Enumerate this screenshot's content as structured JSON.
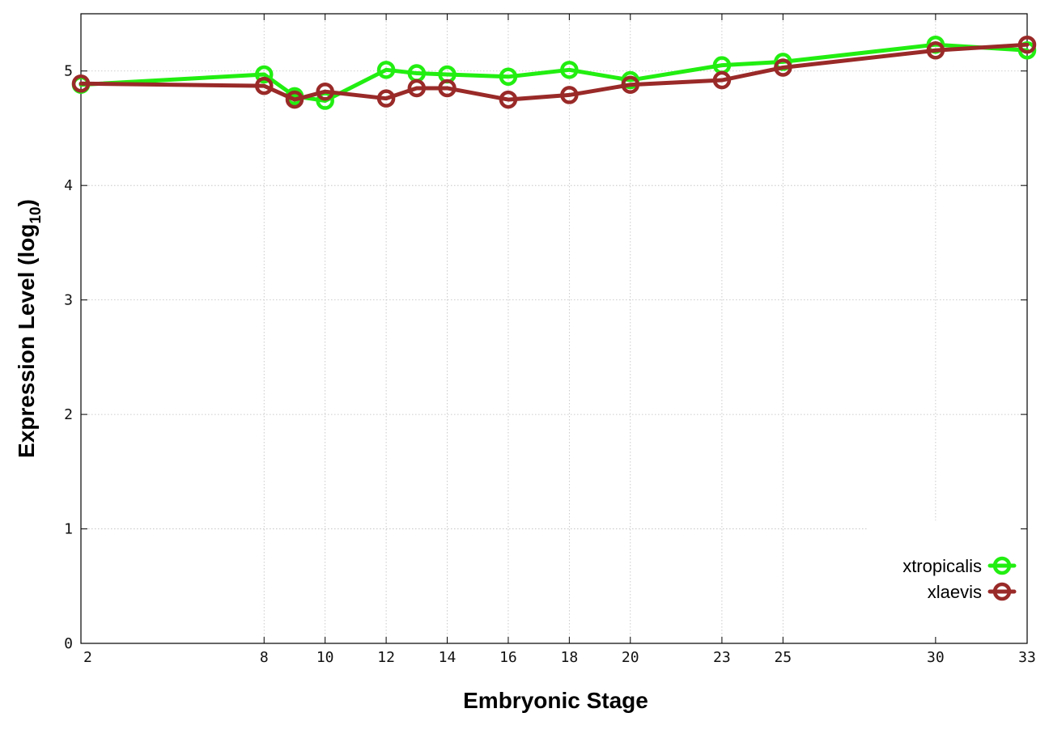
{
  "chart_data": {
    "type": "line",
    "title": "",
    "xlabel": "Embryonic Stage",
    "ylabel": {
      "prefix": "Expression Level (log",
      "subscript": "10",
      "suffix": ")"
    },
    "x": [
      2,
      8,
      9,
      10,
      12,
      13,
      14,
      16,
      18,
      20,
      23,
      25,
      30,
      33
    ],
    "x_ticks": [
      2,
      8,
      10,
      12,
      14,
      16,
      18,
      20,
      23,
      25,
      30,
      33
    ],
    "y_ticks": [
      0,
      1,
      2,
      3,
      4,
      5
    ],
    "xlim": [
      2,
      33
    ],
    "ylim": [
      0,
      5.5
    ],
    "grid": true,
    "legend_position": "bottom-right",
    "series": [
      {
        "name": "xtropicalis",
        "color": "#22ee11",
        "values": [
          4.88,
          4.97,
          4.78,
          4.74,
          5.01,
          4.98,
          4.97,
          4.95,
          5.01,
          4.92,
          5.05,
          5.08,
          5.23,
          5.18
        ]
      },
      {
        "name": "xlaevis",
        "color": "#992a28",
        "values": [
          4.89,
          4.87,
          4.75,
          4.82,
          4.76,
          4.85,
          4.85,
          4.75,
          4.79,
          4.88,
          4.92,
          5.03,
          5.18,
          5.23
        ]
      }
    ]
  }
}
